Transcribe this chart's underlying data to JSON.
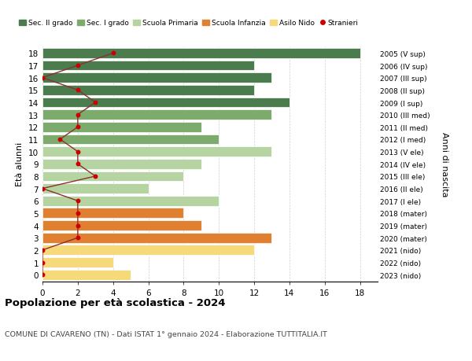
{
  "ages": [
    18,
    17,
    16,
    15,
    14,
    13,
    12,
    11,
    10,
    9,
    8,
    7,
    6,
    5,
    4,
    3,
    2,
    1,
    0
  ],
  "years_labels": [
    "2005 (V sup)",
    "2006 (IV sup)",
    "2007 (III sup)",
    "2008 (II sup)",
    "2009 (I sup)",
    "2010 (III med)",
    "2011 (II med)",
    "2012 (I med)",
    "2013 (V ele)",
    "2014 (IV ele)",
    "2015 (III ele)",
    "2016 (II ele)",
    "2017 (I ele)",
    "2018 (mater)",
    "2019 (mater)",
    "2020 (mater)",
    "2021 (nido)",
    "2022 (nido)",
    "2023 (nido)"
  ],
  "bar_values": [
    18,
    12,
    13,
    12,
    14,
    13,
    9,
    10,
    13,
    9,
    8,
    6,
    10,
    8,
    9,
    13,
    12,
    4,
    5
  ],
  "bar_colors": [
    "#4a7c4e",
    "#4a7c4e",
    "#4a7c4e",
    "#4a7c4e",
    "#4a7c4e",
    "#7dab6e",
    "#7dab6e",
    "#7dab6e",
    "#b5d4a2",
    "#b5d4a2",
    "#b5d4a2",
    "#b5d4a2",
    "#b5d4a2",
    "#e08030",
    "#e08030",
    "#e08030",
    "#f5d97a",
    "#f5d97a",
    "#f5d97a"
  ],
  "stranieri_values": [
    4,
    2,
    0,
    2,
    3,
    2,
    2,
    1,
    2,
    2,
    3,
    0,
    2,
    2,
    2,
    2,
    0,
    0,
    0
  ],
  "stranieri_color": "#cc0000",
  "line_color": "#8b3030",
  "title": "Popolazione per età scolastica - 2024",
  "subtitle": "COMUNE DI CAVARENO (TN) - Dati ISTAT 1° gennaio 2024 - Elaborazione TUTTITALIA.IT",
  "ylabel_left": "Età alunni",
  "ylabel_right": "Anni di nascita",
  "xlim_max": 19,
  "xticks": [
    0,
    2,
    4,
    6,
    8,
    10,
    12,
    14,
    16,
    18
  ],
  "legend_items": [
    {
      "label": "Sec. II grado",
      "color": "#4a7c4e"
    },
    {
      "label": "Sec. I grado",
      "color": "#7dab6e"
    },
    {
      "label": "Scuola Primaria",
      "color": "#b5d4a2"
    },
    {
      "label": "Scuola Infanzia",
      "color": "#e08030"
    },
    {
      "label": "Asilo Nido",
      "color": "#f5d97a"
    },
    {
      "label": "Stranieri",
      "color": "#cc0000"
    }
  ],
  "bg_color": "#ffffff",
  "grid_color": "#d0d0d0",
  "bar_height": 0.82
}
